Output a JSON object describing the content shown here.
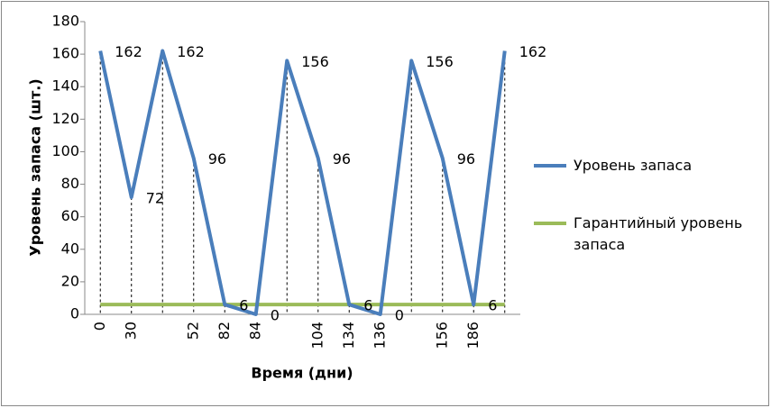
{
  "chart_data": {
    "type": "line",
    "y_label": "Уровень запаса (шт.)",
    "x_label": "Время (дни)",
    "categories": [
      "0",
      "30",
      null,
      "52",
      "82",
      "84",
      null,
      "104",
      "134",
      "136",
      null,
      "156",
      "186",
      null
    ],
    "series": [
      {
        "name": "Уровень запаса",
        "color": "#4a7ebb",
        "values": [
          162,
          72,
          162,
          96,
          6,
          0,
          156,
          96,
          6,
          0,
          156,
          96,
          6,
          162
        ],
        "data_labels": true
      },
      {
        "name": "Гарантийный уровень запаса",
        "color": "#9bbb59",
        "values": [
          6,
          6,
          6,
          6,
          6,
          6,
          6,
          6,
          6,
          6,
          6,
          6,
          6,
          6
        ],
        "data_labels": false
      }
    ],
    "ylim": [
      0,
      180
    ],
    "yticks": [
      0,
      20,
      40,
      60,
      80,
      100,
      120,
      140,
      160,
      180
    ],
    "grid": false,
    "drop_lines": true,
    "legend": "right"
  }
}
